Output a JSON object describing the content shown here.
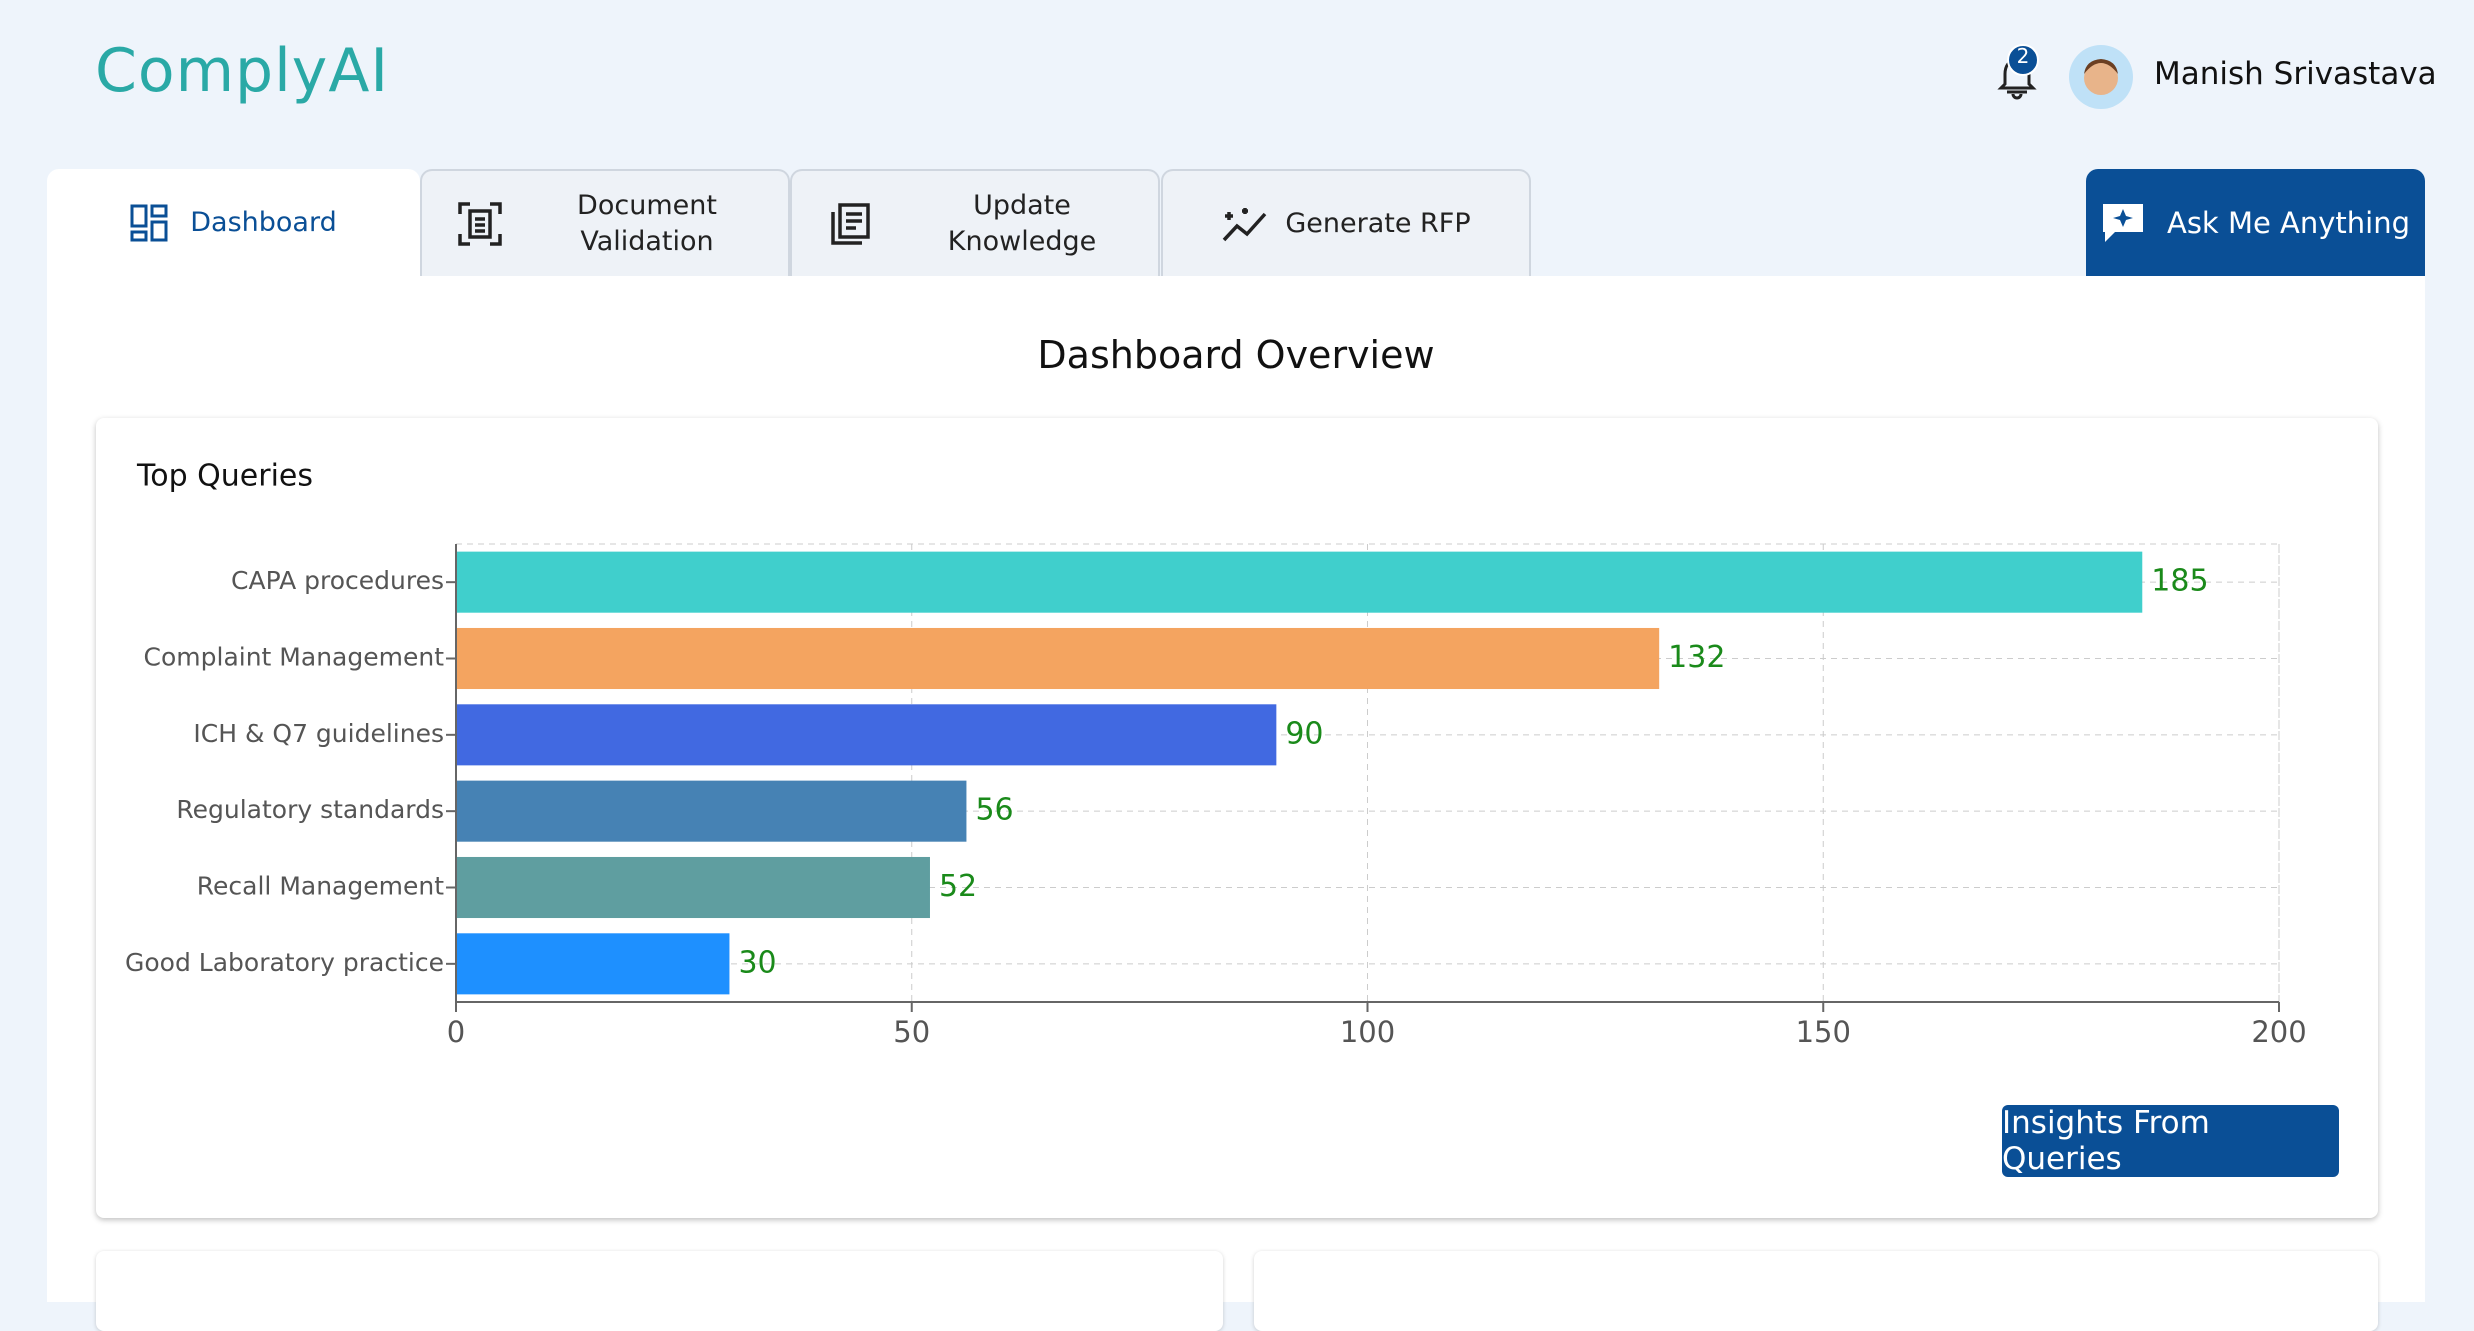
{
  "header": {
    "logo": "ComplyAI",
    "notification_count": "2",
    "user_name": "Manish Srivastava"
  },
  "tabs": [
    "Dashboard",
    "Document Validation",
    "Update Knowledge",
    "Generate RFP"
  ],
  "ask_button": "Ask Me Anything",
  "page_title": "Dashboard Overview",
  "chart_data": {
    "type": "hbar",
    "title": "Top Queries",
    "categories": [
      "CAPA procedures",
      "Complaint Management",
      "ICH & Q7 guidelines",
      "Regulatory standards",
      "Recall Management",
      "Good Laboratory practice"
    ],
    "values": [
      185,
      132,
      90,
      56,
      52,
      30
    ],
    "colors": [
      "#40cfcc",
      "#f4a460",
      "#4169e1",
      "#4682b4",
      "#5f9ea0",
      "#1e90ff"
    ],
    "xlim": [
      0,
      200
    ],
    "xticks": [
      0,
      50,
      100,
      150,
      200
    ],
    "grid": true,
    "value_label_color": "#1a8a1a"
  },
  "insights_button": "Insights From Queries"
}
